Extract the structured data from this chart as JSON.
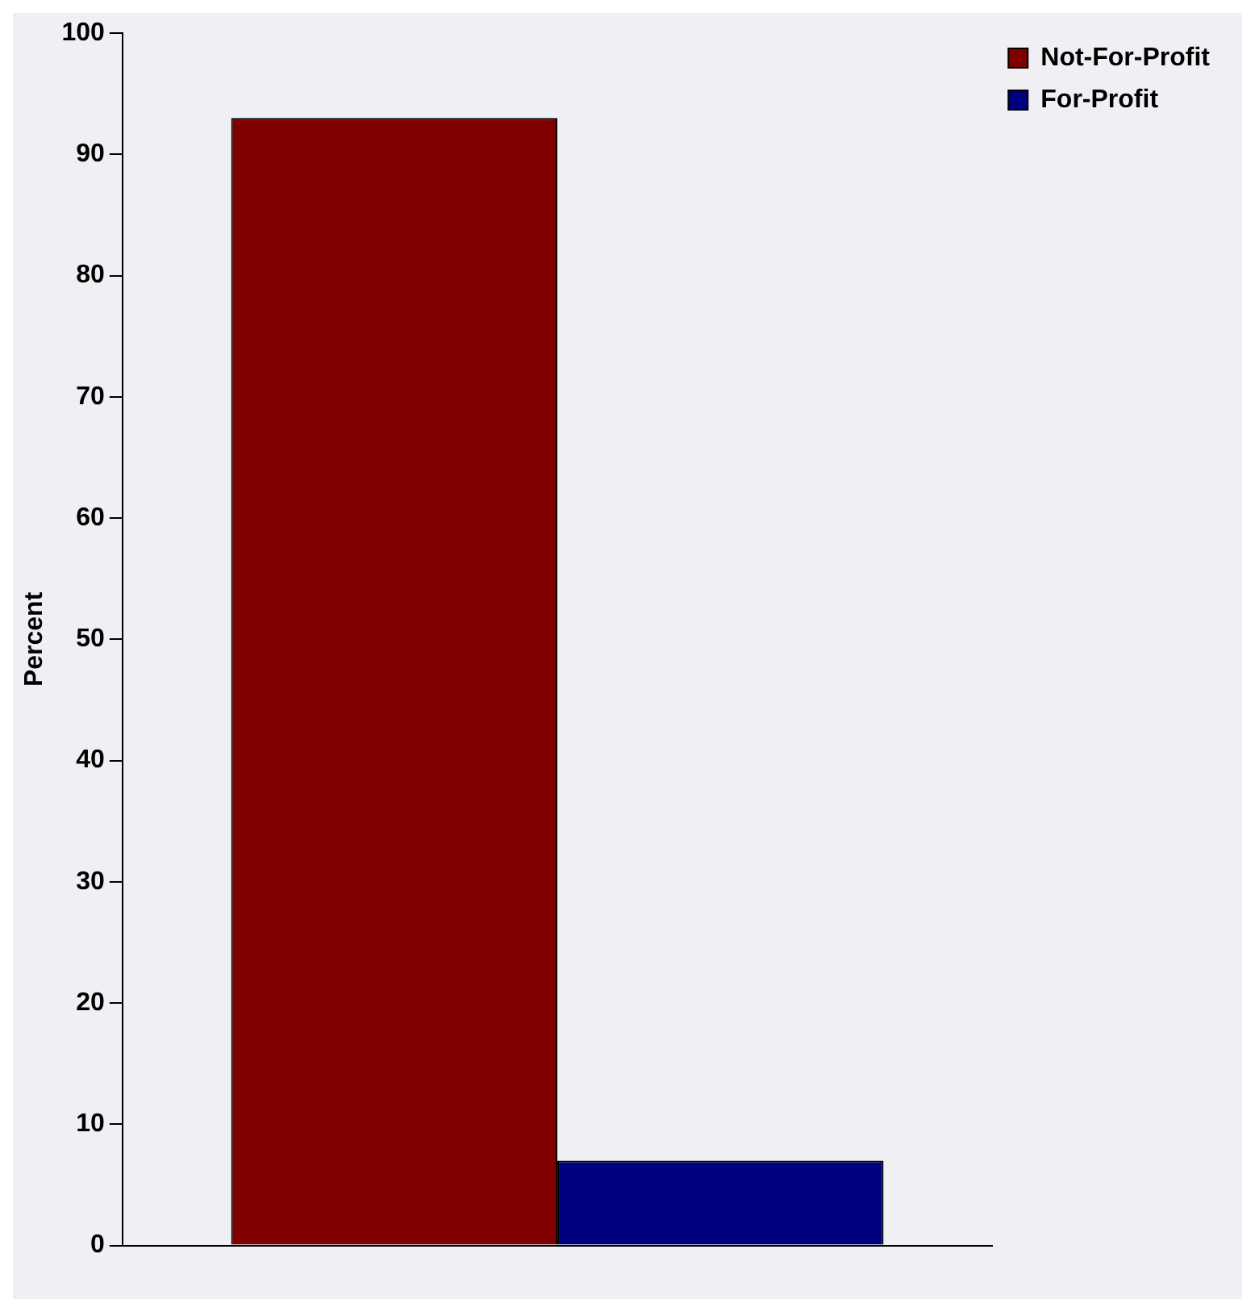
{
  "chart_data": {
    "type": "bar",
    "ylabel": "Percent",
    "categories": [
      null
    ],
    "series": [
      {
        "name": "Not-For-Profit",
        "color": "#800000",
        "values": [
          93
        ]
      },
      {
        "name": "For-Profit",
        "color": "#000080",
        "values": [
          7
        ]
      }
    ],
    "ylim": [
      0,
      100
    ],
    "yticks": [
      0,
      10,
      20,
      30,
      40,
      50,
      60,
      70,
      80,
      90,
      100
    ],
    "grid": false,
    "legend": "top right"
  }
}
